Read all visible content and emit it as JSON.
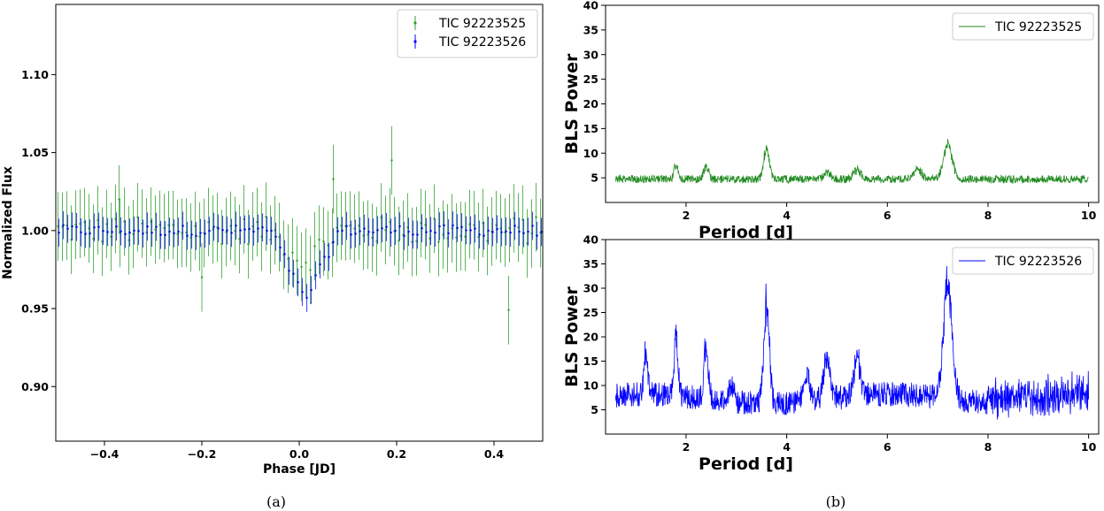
{
  "chart_data": [
    {
      "id": "a",
      "type": "scatter",
      "caption": "(a)",
      "xlabel": "Phase [JD]",
      "ylabel": "Normalized Flux",
      "xlim": [
        -0.5,
        0.5
      ],
      "ylim": [
        0.865,
        1.145
      ],
      "xticks": [
        -0.4,
        -0.2,
        0.0,
        0.2,
        0.4
      ],
      "xtick_labels": [
        "−0.4",
        "−0.2",
        "0.0",
        "0.2",
        "0.4"
      ],
      "yticks": [
        0.9,
        0.95,
        1.0,
        1.05,
        1.1
      ],
      "ytick_labels": [
        "0.90",
        "0.95",
        "1.00",
        "1.05",
        "1.10"
      ],
      "legend": "top-right",
      "series": [
        {
          "name": "TIC 92223525",
          "color": "#2ca02c",
          "errorbar": 0.022,
          "n_points": 110
        },
        {
          "name": "TIC 92223526",
          "color": "#0000ff",
          "errorbar": 0.009,
          "n_points": 110
        }
      ],
      "transit": {
        "center": 0.01,
        "width": 0.07,
        "depth_525": 0.02,
        "depth_526": 0.045
      },
      "outliers_525": [
        {
          "x": 0.19,
          "y": 1.045
        },
        {
          "x": 0.07,
          "y": 1.033
        },
        {
          "x": 0.43,
          "y": 0.949
        },
        {
          "x": -0.2,
          "y": 0.97
        },
        {
          "x": -0.37,
          "y": 1.02
        }
      ]
    },
    {
      "id": "b-top",
      "type": "line",
      "xlabel": "Period [d]",
      "ylabel": "BLS Power",
      "xlim": [
        0.4,
        10.2
      ],
      "ylim": [
        0,
        40
      ],
      "xticks": [
        2,
        4,
        6,
        8,
        10
      ],
      "xtick_labels": [
        "2",
        "4",
        "6",
        "8",
        "10"
      ],
      "yticks": [
        5,
        10,
        15,
        20,
        25,
        30,
        35,
        40
      ],
      "ytick_labels": [
        "5",
        "10",
        "15",
        "20",
        "25",
        "30",
        "35",
        "40"
      ],
      "legend": "top-right",
      "series": [
        {
          "name": "TIC 92223525",
          "color": "#228b22"
        }
      ],
      "period_range": [
        0.6,
        10.0
      ],
      "baseline": 4.5,
      "noise": 1.6,
      "peaks": [
        {
          "x": 3.6,
          "height": 12.5
        },
        {
          "x": 7.2,
          "height": 13.5
        },
        {
          "x": 1.8,
          "height": 8.5
        },
        {
          "x": 2.4,
          "height": 8.5
        },
        {
          "x": 5.4,
          "height": 7.5
        },
        {
          "x": 6.6,
          "height": 7.5
        },
        {
          "x": 4.8,
          "height": 7.0
        }
      ]
    },
    {
      "id": "b-bottom",
      "type": "line",
      "caption": "(b)",
      "xlabel": "Period [d]",
      "ylabel": "BLS Power",
      "xlim": [
        0.4,
        10.2
      ],
      "ylim": [
        0,
        40
      ],
      "xticks": [
        2,
        4,
        6,
        8,
        10
      ],
      "xtick_labels": [
        "2",
        "4",
        "6",
        "8",
        "10"
      ],
      "yticks": [
        5,
        10,
        15,
        20,
        25,
        30,
        35,
        40
      ],
      "ytick_labels": [
        "5",
        "10",
        "15",
        "20",
        "25",
        "30",
        "35",
        "40"
      ],
      "legend": "top-right",
      "series": [
        {
          "name": "TIC 92223526",
          "color": "#0000ff"
        }
      ],
      "period_range": [
        0.6,
        10.0
      ],
      "baseline": 6.5,
      "noise": 5.0,
      "peaks": [
        {
          "x": 3.6,
          "height": 32
        },
        {
          "x": 7.2,
          "height": 36
        },
        {
          "x": 1.8,
          "height": 23
        },
        {
          "x": 2.4,
          "height": 21
        },
        {
          "x": 1.2,
          "height": 18.5
        },
        {
          "x": 4.8,
          "height": 18.5
        },
        {
          "x": 5.4,
          "height": 17
        },
        {
          "x": 2.9,
          "height": 13
        },
        {
          "x": 4.4,
          "height": 15
        }
      ]
    }
  ]
}
